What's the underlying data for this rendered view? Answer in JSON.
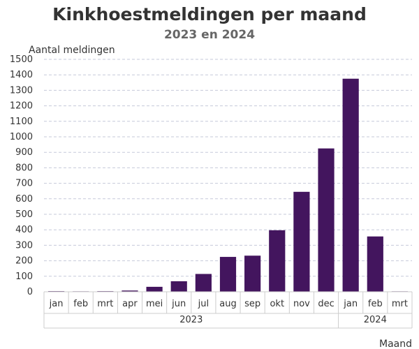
{
  "chart_data": {
    "type": "bar",
    "title": "Kinkhoestmeldingen per maand",
    "subtitle": "2023 en 2024",
    "ylabel": "Aantal meldingen",
    "xlabel": "Maand",
    "categories": [
      "jan",
      "feb",
      "mrt",
      "apr",
      "mei",
      "jun",
      "jul",
      "aug",
      "sep",
      "okt",
      "nov",
      "dec",
      "jan",
      "feb",
      "mrt"
    ],
    "groups": [
      {
        "label": "2023",
        "count": 12
      },
      {
        "label": "2024",
        "count": 3
      }
    ],
    "values": [
      4,
      3,
      4,
      8,
      32,
      68,
      115,
      225,
      233,
      397,
      645,
      925,
      1375,
      357,
      3
    ],
    "ylim": [
      0,
      1500
    ],
    "yticks": [
      0,
      100,
      200,
      300,
      400,
      500,
      600,
      700,
      800,
      900,
      1000,
      1100,
      1200,
      1300,
      1400,
      1500
    ],
    "grid": true,
    "colors": {
      "bar": "#43155e",
      "grid": "#c6c9da",
      "axis": "#cccccc"
    }
  }
}
